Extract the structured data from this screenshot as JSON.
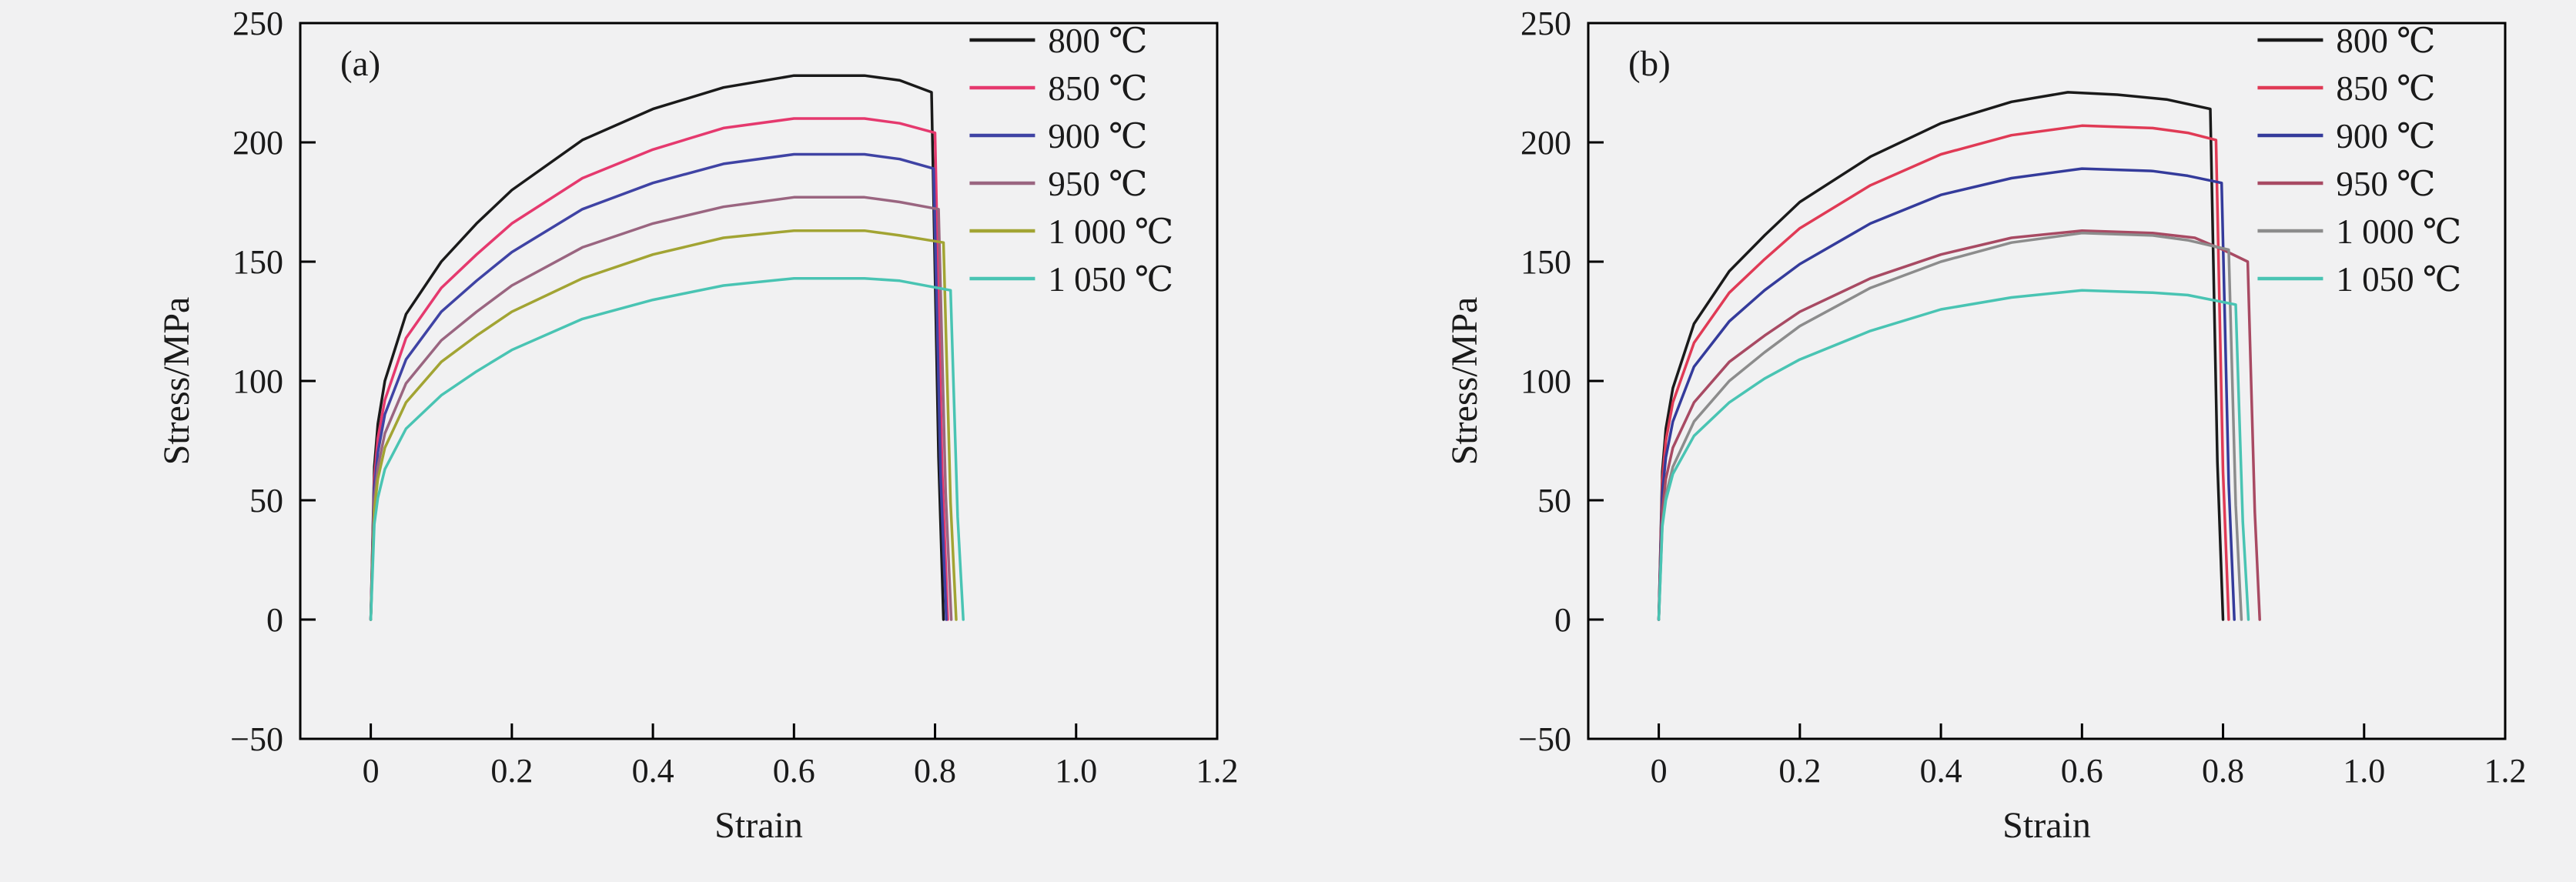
{
  "figure": {
    "background": "#f1f1f2",
    "axis_color": "#000000",
    "description_visible_text_only": true
  },
  "chart_data": [
    {
      "type": "line",
      "panel_label": "(a)",
      "title": "",
      "xlabel": "Strain",
      "ylabel": "Stress/MPa",
      "xlim": [
        -0.1,
        1.2
      ],
      "ylim": [
        -50,
        250
      ],
      "grid": false,
      "legend_position": "top-right-inside",
      "xticks": {
        "values": [
          0,
          0.2,
          0.4,
          0.6,
          0.8,
          1.0,
          1.2
        ],
        "labels": [
          "0",
          "0.2",
          "0.4",
          "0.6",
          "0.8",
          "1.0",
          "1.2"
        ]
      },
      "yticks": {
        "values": [
          -50,
          0,
          50,
          100,
          150,
          200,
          250
        ],
        "labels": [
          "−50",
          "0",
          "50",
          "100",
          "150",
          "200",
          "250"
        ]
      },
      "series": [
        {
          "name": "800 ℃",
          "color": "#1a1a1a",
          "points": [
            [
              0,
              0
            ],
            [
              0.005,
              64
            ],
            [
              0.01,
              82
            ],
            [
              0.02,
              100
            ],
            [
              0.05,
              128
            ],
            [
              0.1,
              150
            ],
            [
              0.15,
              166
            ],
            [
              0.2,
              180
            ],
            [
              0.3,
              201
            ],
            [
              0.4,
              214
            ],
            [
              0.5,
              223
            ],
            [
              0.6,
              228
            ],
            [
              0.7,
              228
            ],
            [
              0.75,
              226
            ],
            [
              0.795,
              221
            ],
            [
              0.805,
              68
            ],
            [
              0.812,
              0
            ]
          ]
        },
        {
          "name": "850 ℃",
          "color": "#e5396e",
          "points": [
            [
              0,
              0
            ],
            [
              0.005,
              59
            ],
            [
              0.01,
              76
            ],
            [
              0.02,
              92
            ],
            [
              0.05,
              118
            ],
            [
              0.1,
              139
            ],
            [
              0.15,
              153
            ],
            [
              0.2,
              166
            ],
            [
              0.3,
              185
            ],
            [
              0.4,
              197
            ],
            [
              0.5,
              206
            ],
            [
              0.6,
              210
            ],
            [
              0.7,
              210
            ],
            [
              0.75,
              208
            ],
            [
              0.8,
              204
            ],
            [
              0.81,
              63
            ],
            [
              0.818,
              0
            ]
          ]
        },
        {
          "name": "900 ℃",
          "color": "#3f43a4",
          "points": [
            [
              0,
              0
            ],
            [
              0.005,
              55
            ],
            [
              0.01,
              70
            ],
            [
              0.02,
              86
            ],
            [
              0.05,
              109
            ],
            [
              0.1,
              129
            ],
            [
              0.15,
              142
            ],
            [
              0.2,
              154
            ],
            [
              0.3,
              172
            ],
            [
              0.4,
              183
            ],
            [
              0.5,
              191
            ],
            [
              0.6,
              195
            ],
            [
              0.7,
              195
            ],
            [
              0.75,
              193
            ],
            [
              0.798,
              189
            ],
            [
              0.808,
              59
            ],
            [
              0.816,
              0
            ]
          ]
        },
        {
          "name": "950 ℃",
          "color": "#9a6580",
          "points": [
            [
              0,
              0
            ],
            [
              0.005,
              50
            ],
            [
              0.01,
              64
            ],
            [
              0.02,
              78
            ],
            [
              0.05,
              99
            ],
            [
              0.1,
              117
            ],
            [
              0.15,
              129
            ],
            [
              0.2,
              140
            ],
            [
              0.3,
              156
            ],
            [
              0.4,
              166
            ],
            [
              0.5,
              173
            ],
            [
              0.6,
              177
            ],
            [
              0.7,
              177
            ],
            [
              0.75,
              175
            ],
            [
              0.805,
              172
            ],
            [
              0.815,
              53
            ],
            [
              0.823,
              0
            ]
          ]
        },
        {
          "name": "1 000 ℃",
          "color": "#a2a433",
          "points": [
            [
              0,
              0
            ],
            [
              0.005,
              46
            ],
            [
              0.01,
              59
            ],
            [
              0.02,
              72
            ],
            [
              0.05,
              91
            ],
            [
              0.1,
              108
            ],
            [
              0.15,
              119
            ],
            [
              0.2,
              129
            ],
            [
              0.3,
              143
            ],
            [
              0.4,
              153
            ],
            [
              0.5,
              160
            ],
            [
              0.6,
              163
            ],
            [
              0.7,
              163
            ],
            [
              0.75,
              161
            ],
            [
              0.812,
              158
            ],
            [
              0.822,
              49
            ],
            [
              0.83,
              0
            ]
          ]
        },
        {
          "name": "1 050 ℃",
          "color": "#49c4b3",
          "points": [
            [
              0,
              0
            ],
            [
              0.005,
              40
            ],
            [
              0.01,
              51
            ],
            [
              0.02,
              63
            ],
            [
              0.05,
              80
            ],
            [
              0.1,
              94
            ],
            [
              0.15,
              104
            ],
            [
              0.2,
              113
            ],
            [
              0.3,
              126
            ],
            [
              0.4,
              134
            ],
            [
              0.5,
              140
            ],
            [
              0.6,
              143
            ],
            [
              0.7,
              143
            ],
            [
              0.75,
              142
            ],
            [
              0.822,
              138
            ],
            [
              0.832,
              43
            ],
            [
              0.84,
              0
            ]
          ]
        }
      ]
    },
    {
      "type": "line",
      "panel_label": "(b)",
      "title": "",
      "xlabel": "Strain",
      "ylabel": "Stress/MPa",
      "xlim": [
        -0.1,
        1.2
      ],
      "ylim": [
        -50,
        250
      ],
      "grid": false,
      "legend_position": "top-right-inside",
      "xticks": {
        "values": [
          0,
          0.2,
          0.4,
          0.6,
          0.8,
          1.0,
          1.2
        ],
        "labels": [
          "0",
          "0.2",
          "0.4",
          "0.6",
          "0.8",
          "1.0",
          "1.2"
        ]
      },
      "yticks": {
        "values": [
          -50,
          0,
          50,
          100,
          150,
          200,
          250
        ],
        "labels": [
          "−50",
          "0",
          "50",
          "100",
          "150",
          "200",
          "250"
        ]
      },
      "series": [
        {
          "name": "800 ℃",
          "color": "#1a1a1a",
          "points": [
            [
              0,
              0
            ],
            [
              0.005,
              62
            ],
            [
              0.01,
              80
            ],
            [
              0.02,
              97
            ],
            [
              0.05,
              124
            ],
            [
              0.1,
              146
            ],
            [
              0.15,
              161
            ],
            [
              0.2,
              175
            ],
            [
              0.3,
              194
            ],
            [
              0.4,
              208
            ],
            [
              0.5,
              217
            ],
            [
              0.58,
              221
            ],
            [
              0.65,
              220
            ],
            [
              0.72,
              218
            ],
            [
              0.782,
              214
            ],
            [
              0.792,
              66
            ],
            [
              0.8,
              0
            ]
          ]
        },
        {
          "name": "850 ℃",
          "color": "#e03a55",
          "points": [
            [
              0,
              0
            ],
            [
              0.005,
              58
            ],
            [
              0.01,
              75
            ],
            [
              0.02,
              91
            ],
            [
              0.05,
              116
            ],
            [
              0.1,
              137
            ],
            [
              0.15,
              151
            ],
            [
              0.2,
              164
            ],
            [
              0.3,
              182
            ],
            [
              0.4,
              195
            ],
            [
              0.5,
              203
            ],
            [
              0.6,
              207
            ],
            [
              0.7,
              206
            ],
            [
              0.75,
              204
            ],
            [
              0.79,
              201
            ],
            [
              0.8,
              62
            ],
            [
              0.808,
              0
            ]
          ]
        },
        {
          "name": "900 ℃",
          "color": "#343b9b",
          "points": [
            [
              0,
              0
            ],
            [
              0.005,
              53
            ],
            [
              0.01,
              68
            ],
            [
              0.02,
              83
            ],
            [
              0.05,
              106
            ],
            [
              0.1,
              125
            ],
            [
              0.15,
              138
            ],
            [
              0.2,
              149
            ],
            [
              0.3,
              166
            ],
            [
              0.4,
              178
            ],
            [
              0.5,
              185
            ],
            [
              0.6,
              189
            ],
            [
              0.7,
              188
            ],
            [
              0.75,
              186
            ],
            [
              0.798,
              183
            ],
            [
              0.808,
              57
            ],
            [
              0.816,
              0
            ]
          ]
        },
        {
          "name": "950 ℃",
          "color": "#a84a63",
          "points": [
            [
              0,
              0
            ],
            [
              0.005,
              46
            ],
            [
              0.01,
              59
            ],
            [
              0.02,
              72
            ],
            [
              0.05,
              91
            ],
            [
              0.1,
              108
            ],
            [
              0.15,
              119
            ],
            [
              0.2,
              129
            ],
            [
              0.3,
              143
            ],
            [
              0.4,
              153
            ],
            [
              0.5,
              160
            ],
            [
              0.6,
              163
            ],
            [
              0.7,
              162
            ],
            [
              0.76,
              160
            ],
            [
              0.8,
              155
            ],
            [
              0.835,
              150
            ],
            [
              0.845,
              45
            ],
            [
              0.852,
              0
            ]
          ]
        },
        {
          "name": "1 000 ℃",
          "color": "#8c8c8c",
          "points": [
            [
              0,
              0
            ],
            [
              0.005,
              40
            ],
            [
              0.01,
              52
            ],
            [
              0.02,
              64
            ],
            [
              0.05,
              83
            ],
            [
              0.1,
              100
            ],
            [
              0.15,
              112
            ],
            [
              0.2,
              123
            ],
            [
              0.3,
              139
            ],
            [
              0.4,
              150
            ],
            [
              0.5,
              158
            ],
            [
              0.6,
              162
            ],
            [
              0.7,
              161
            ],
            [
              0.75,
              159
            ],
            [
              0.808,
              155
            ],
            [
              0.818,
              48
            ],
            [
              0.826,
              0
            ]
          ]
        },
        {
          "name": "1 050 ℃",
          "color": "#49c4b3",
          "points": [
            [
              0,
              0
            ],
            [
              0.005,
              39
            ],
            [
              0.01,
              50
            ],
            [
              0.02,
              61
            ],
            [
              0.05,
              77
            ],
            [
              0.1,
              91
            ],
            [
              0.15,
              101
            ],
            [
              0.2,
              109
            ],
            [
              0.3,
              121
            ],
            [
              0.4,
              130
            ],
            [
              0.5,
              135
            ],
            [
              0.6,
              138
            ],
            [
              0.7,
              137
            ],
            [
              0.75,
              136
            ],
            [
              0.818,
              132
            ],
            [
              0.828,
              41
            ],
            [
              0.836,
              0
            ]
          ]
        }
      ]
    }
  ]
}
